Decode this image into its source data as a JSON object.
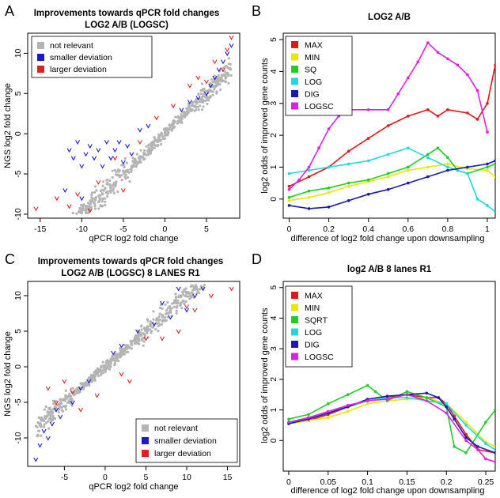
{
  "chart_data": [
    {
      "panel": "A",
      "type": "scatter",
      "title": "Improvements towards qPCR fold changes",
      "subtitle": "LOG2 A/B (LOGSC)",
      "xlabel": "qPCR log2 fold change",
      "ylabel": "NGS log2 fold change",
      "xlim": [
        -16.5,
        9
      ],
      "ylim": [
        -10.5,
        12.5
      ],
      "xticks": [
        -15,
        -10,
        -5,
        0,
        5
      ],
      "yticks": [
        -10,
        -5,
        0,
        5,
        10
      ],
      "legend": {
        "position": "top-left",
        "entries": [
          "not relevant",
          "smaller deviation",
          "larger deviation"
        ]
      },
      "colors": {
        "not relevant": "#b4b4b4",
        "smaller deviation": "#1a1acc",
        "larger deviation": "#dd2222"
      },
      "series": [
        {
          "name": "smaller deviation",
          "points": [
            [
              -11.5,
              -2
            ],
            [
              -11,
              -3
            ],
            [
              -10.5,
              -1
            ],
            [
              -10,
              -4
            ],
            [
              -9.5,
              -2.5
            ],
            [
              -9,
              -1.5
            ],
            [
              -8.5,
              -3
            ],
            [
              -8,
              -2
            ],
            [
              -7.5,
              -4
            ],
            [
              -7,
              -1
            ],
            [
              -6.5,
              -3
            ],
            [
              -6,
              -2
            ],
            [
              -5.5,
              -1
            ],
            [
              -5,
              -3.5
            ],
            [
              -4.5,
              -1.5
            ],
            [
              -4,
              -2.5
            ],
            [
              -3,
              0.5
            ],
            [
              -2,
              1
            ],
            [
              2,
              3
            ],
            [
              3,
              4
            ],
            [
              4,
              4.5
            ],
            [
              5,
              5
            ],
            [
              5.5,
              6
            ],
            [
              6,
              7
            ],
            [
              6.5,
              8
            ],
            [
              7,
              9
            ],
            [
              7.5,
              10
            ],
            [
              8,
              11
            ],
            [
              -12,
              -7
            ],
            [
              -10,
              -8
            ]
          ]
        },
        {
          "name": "larger deviation",
          "points": [
            [
              -15.5,
              -9.3
            ],
            [
              -13,
              -8
            ],
            [
              -11.5,
              -9
            ],
            [
              -10.5,
              -7.5
            ],
            [
              -8,
              -6
            ],
            [
              -6,
              -3
            ],
            [
              -3,
              -1
            ],
            [
              -1,
              2
            ],
            [
              1,
              3.5
            ],
            [
              3,
              6
            ],
            [
              4,
              7
            ],
            [
              5,
              6.5
            ],
            [
              6,
              9
            ],
            [
              7,
              8
            ],
            [
              7.5,
              10.5
            ],
            [
              8,
              12
            ],
            [
              -9,
              -9.5
            ],
            [
              -5,
              -7
            ]
          ]
        }
      ]
    },
    {
      "panel": "B",
      "type": "line",
      "title": "LOG2 A/B",
      "xlabel": "difference of log2 fold change upon downsampling",
      "ylabel": "log2 odds of improved gene counts",
      "xlim": [
        -0.03,
        1.04
      ],
      "ylim": [
        -0.6,
        5.2
      ],
      "xticks": [
        0.0,
        0.2,
        0.4,
        0.6,
        0.8,
        1.0
      ],
      "yticks": [
        0,
        1,
        2,
        3,
        4,
        5
      ],
      "legend": {
        "position": "top-left"
      },
      "series": [
        {
          "name": "MAX",
          "color": "#dd1a1a",
          "x": [
            0,
            0.1,
            0.2,
            0.3,
            0.4,
            0.5,
            0.6,
            0.7,
            0.75,
            0.8,
            0.9,
            0.95,
            1.0,
            1.04
          ],
          "values": [
            0.4,
            0.7,
            1.0,
            1.5,
            1.9,
            2.3,
            2.6,
            2.8,
            2.6,
            2.8,
            2.7,
            2.5,
            3.0,
            4.2
          ]
        },
        {
          "name": "MIN",
          "color": "#e8e800",
          "x": [
            0,
            0.1,
            0.2,
            0.3,
            0.4,
            0.5,
            0.6,
            0.7,
            0.8,
            0.9,
            1.0,
            1.04
          ],
          "values": [
            -0.05,
            0.05,
            0.2,
            0.4,
            0.55,
            0.7,
            0.9,
            1.0,
            1.1,
            0.95,
            0.9,
            0.7
          ]
        },
        {
          "name": "SQ",
          "color": "#22cc22",
          "x": [
            0,
            0.1,
            0.2,
            0.3,
            0.4,
            0.5,
            0.6,
            0.7,
            0.75,
            0.8,
            0.85,
            0.9,
            1.0,
            1.04
          ],
          "values": [
            0.05,
            0.25,
            0.35,
            0.5,
            0.6,
            0.8,
            1.0,
            1.4,
            1.6,
            1.3,
            0.9,
            0.8,
            1.0,
            1.1
          ]
        },
        {
          "name": "LOG",
          "color": "#22d8d8",
          "x": [
            0,
            0.1,
            0.2,
            0.3,
            0.4,
            0.5,
            0.6,
            0.7,
            0.8,
            0.9,
            0.95,
            1.0,
            1.04
          ],
          "values": [
            0.8,
            0.9,
            1.0,
            1.1,
            1.2,
            1.4,
            1.6,
            1.3,
            1.0,
            0.8,
            0.0,
            -0.2,
            -0.4
          ]
        },
        {
          "name": "DIG",
          "color": "#1a1ab0",
          "x": [
            0,
            0.1,
            0.2,
            0.3,
            0.4,
            0.5,
            0.6,
            0.7,
            0.8,
            0.9,
            1.0,
            1.04
          ],
          "values": [
            -0.2,
            -0.3,
            -0.25,
            -0.05,
            0.15,
            0.3,
            0.5,
            0.7,
            0.9,
            1.0,
            1.1,
            1.2
          ]
        },
        {
          "name": "LOGSC",
          "color": "#dd22dd",
          "x": [
            0,
            0.05,
            0.1,
            0.15,
            0.2,
            0.25,
            0.3,
            0.4,
            0.5,
            0.55,
            0.6,
            0.65,
            0.7,
            0.75,
            0.8,
            0.85,
            0.9,
            0.95,
            1.0
          ],
          "values": [
            0.3,
            0.6,
            1.0,
            1.6,
            2.2,
            2.6,
            2.8,
            2.8,
            2.8,
            3.3,
            3.8,
            4.3,
            4.9,
            4.6,
            4.4,
            4.2,
            3.9,
            3.4,
            2.1
          ]
        }
      ]
    },
    {
      "panel": "C",
      "type": "scatter",
      "title": "Improvements towards qPCR fold changes",
      "subtitle": "LOG2 A/B (LOGSC) 8 LANES R1",
      "xlabel": "qPCR log2 fold change",
      "ylabel": "NGS log2 fold change",
      "xlim": [
        -9.5,
        16.5
      ],
      "ylim": [
        -14,
        12
      ],
      "xticks": [
        -5,
        0,
        5,
        10,
        15
      ],
      "yticks": [
        -10,
        -5,
        0,
        5,
        10
      ],
      "legend": {
        "position": "bottom-right",
        "entries": [
          "not relevant",
          "smaller deviation",
          "larger deviation"
        ]
      },
      "colors": {
        "not relevant": "#b4b4b4",
        "smaller deviation": "#1a1acc",
        "larger deviation": "#dd2222"
      },
      "series": [
        {
          "name": "smaller deviation",
          "points": [
            [
              -8.5,
              -13
            ],
            [
              -8,
              -11
            ],
            [
              -7.5,
              -9
            ],
            [
              -7,
              -10
            ],
            [
              -6.5,
              -8
            ],
            [
              -6,
              -6
            ],
            [
              -5.5,
              -7
            ],
            [
              -4,
              -5
            ],
            [
              -3,
              -3
            ],
            [
              -2,
              -2
            ],
            [
              1,
              2
            ],
            [
              2,
              3
            ],
            [
              4,
              5
            ],
            [
              6,
              6
            ],
            [
              7,
              9
            ],
            [
              8,
              7
            ],
            [
              9,
              11
            ],
            [
              10,
              8
            ],
            [
              11,
              10
            ],
            [
              12,
              11
            ]
          ]
        },
        {
          "name": "larger deviation",
          "points": [
            [
              -7,
              -3
            ],
            [
              -6,
              -5
            ],
            [
              -5,
              -2
            ],
            [
              -4,
              -3.5
            ],
            [
              -3,
              -6
            ],
            [
              -1,
              -4
            ],
            [
              2,
              -1
            ],
            [
              3,
              -2
            ],
            [
              5,
              4
            ],
            [
              7,
              4
            ],
            [
              9,
              5
            ],
            [
              10,
              8.5
            ],
            [
              11,
              8
            ],
            [
              13,
              10
            ],
            [
              15.5,
              11
            ]
          ]
        }
      ]
    },
    {
      "panel": "D",
      "type": "line",
      "title": "log2 A/B 8 lanes R1",
      "xlabel": "difference of log2 fold change upon downsampling",
      "ylabel": "log2 odds of improved gene counts",
      "xlim": [
        -0.007,
        0.262
      ],
      "ylim": [
        -1.0,
        5.2
      ],
      "xticks": [
        0.0,
        0.05,
        0.1,
        0.15,
        0.2,
        0.25
      ],
      "yticks": [
        0,
        1,
        2,
        3,
        4,
        5
      ],
      "legend": {
        "position": "top-left"
      },
      "series": [
        {
          "name": "MAX",
          "color": "#dd1a1a",
          "x": [
            0,
            0.025,
            0.05,
            0.075,
            0.1,
            0.125,
            0.15,
            0.175,
            0.19,
            0.2,
            0.21,
            0.225,
            0.24,
            0.262
          ],
          "values": [
            0.55,
            0.65,
            0.85,
            1.1,
            1.3,
            1.4,
            1.5,
            1.4,
            1.4,
            1.2,
            0.8,
            0.2,
            -0.3,
            -0.4
          ]
        },
        {
          "name": "MIN",
          "color": "#e8e800",
          "x": [
            0,
            0.025,
            0.05,
            0.075,
            0.1,
            0.125,
            0.15,
            0.175,
            0.2,
            0.225,
            0.25,
            0.262
          ],
          "values": [
            0.55,
            0.65,
            0.75,
            0.95,
            1.2,
            1.3,
            1.35,
            1.4,
            1.2,
            0.6,
            -0.05,
            -0.2
          ]
        },
        {
          "name": "SQRT",
          "color": "#22cc22",
          "x": [
            0,
            0.025,
            0.05,
            0.075,
            0.1,
            0.11,
            0.125,
            0.15,
            0.175,
            0.2,
            0.21,
            0.225,
            0.25,
            0.262
          ],
          "values": [
            0.7,
            0.85,
            1.2,
            1.5,
            1.8,
            1.6,
            1.3,
            1.6,
            1.4,
            1.1,
            -0.2,
            -0.4,
            0.6,
            1.0
          ]
        },
        {
          "name": "LOG",
          "color": "#22d8d8",
          "x": [
            0,
            0.025,
            0.05,
            0.075,
            0.1,
            0.125,
            0.15,
            0.175,
            0.2,
            0.225,
            0.25,
            0.262
          ],
          "values": [
            0.6,
            0.7,
            0.9,
            1.1,
            1.3,
            1.4,
            1.4,
            1.3,
            1.2,
            0.5,
            -0.1,
            -0.3
          ]
        },
        {
          "name": "DIG",
          "color": "#1a1ab0",
          "x": [
            0,
            0.025,
            0.05,
            0.075,
            0.1,
            0.125,
            0.15,
            0.175,
            0.19,
            0.2,
            0.21,
            0.225,
            0.24,
            0.262
          ],
          "values": [
            0.55,
            0.7,
            0.9,
            1.1,
            1.35,
            1.45,
            1.5,
            1.55,
            1.4,
            1.1,
            0.7,
            0.1,
            -0.2,
            -0.4
          ]
        },
        {
          "name": "LOGSC",
          "color": "#dd22dd",
          "x": [
            0,
            0.025,
            0.05,
            0.075,
            0.1,
            0.125,
            0.15,
            0.175,
            0.2,
            0.225,
            0.24,
            0.25,
            0.262
          ],
          "values": [
            0.6,
            0.75,
            0.95,
            1.15,
            1.3,
            1.35,
            1.5,
            1.3,
            0.9,
            0.0,
            -0.3,
            -0.6,
            -0.7
          ]
        }
      ]
    }
  ]
}
